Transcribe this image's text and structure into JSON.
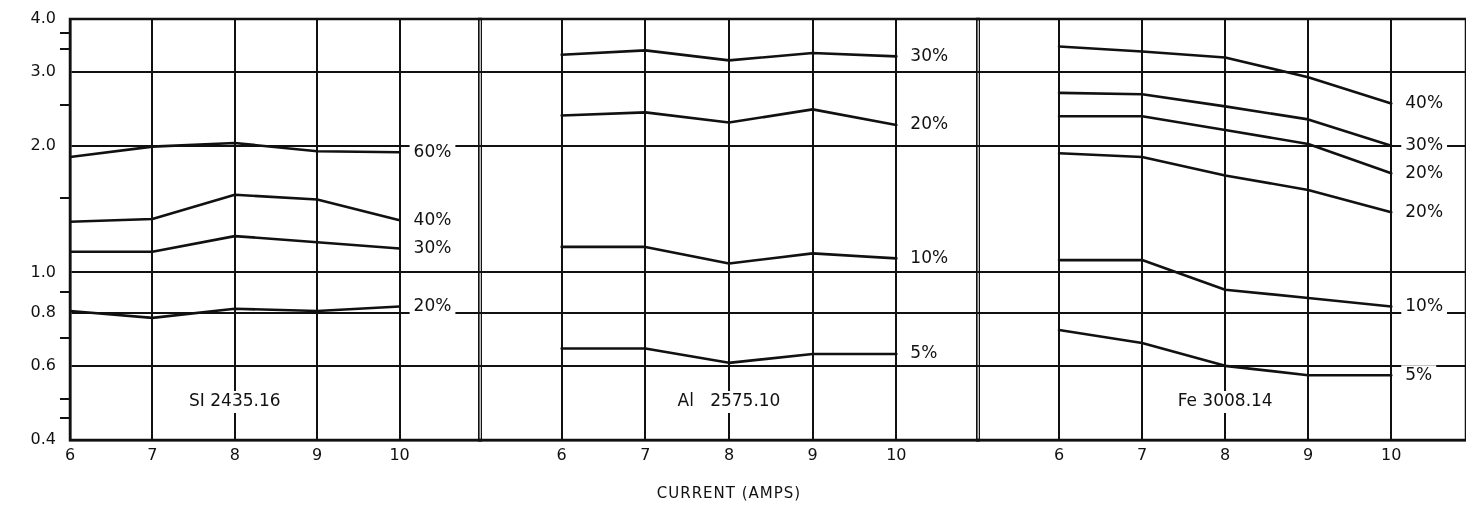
{
  "chart_data": [
    {
      "type": "line",
      "x": [
        6,
        7,
        8,
        9,
        10
      ],
      "log": "y",
      "grid": true,
      "legend": false,
      "marker": "none",
      "line_style": "solid",
      "annotations": [
        "SI 2435.16"
      ],
      "xlim": [
        6,
        11
      ],
      "xticks": [
        6,
        7,
        8,
        9,
        10
      ],
      "ylim": [
        0.4,
        4.0
      ],
      "yticks": [
        {
          "value": 0.4,
          "label": "0.4"
        },
        {
          "value": 0.45,
          "label": null
        },
        {
          "value": 0.5,
          "label": null
        },
        {
          "value": 0.6,
          "label": "0.6"
        },
        {
          "value": 0.7,
          "label": null
        },
        {
          "value": 0.8,
          "label": "0.8"
        },
        {
          "value": 0.9,
          "label": null
        },
        {
          "value": 1.0,
          "label": "1.0"
        },
        {
          "value": 1.5,
          "label": null
        },
        {
          "value": 2.0,
          "label": "2.0"
        },
        {
          "value": 2.5,
          "label": null
        },
        {
          "value": 3.0,
          "label": "3.0"
        },
        {
          "value": 3.4,
          "label": null
        },
        {
          "value": 3.7,
          "label": null
        },
        {
          "value": 4.0,
          "label": "4.0"
        }
      ],
      "series": [
        {
          "name": "60%",
          "color": "#111111",
          "values": [
            1.88,
            1.99,
            2.03,
            1.94,
            1.93
          ]
        },
        {
          "name": "40%",
          "color": "#111111",
          "values": [
            1.32,
            1.34,
            1.53,
            1.49,
            1.33
          ]
        },
        {
          "name": "30%",
          "color": "#111111",
          "values": [
            1.12,
            1.12,
            1.22,
            1.18,
            1.14
          ]
        },
        {
          "name": "20%",
          "color": "#111111",
          "values": [
            0.81,
            0.78,
            0.82,
            0.81,
            0.83
          ]
        }
      ]
    },
    {
      "type": "line",
      "x": [
        6,
        7,
        8,
        9,
        10
      ],
      "log": "y",
      "grid": true,
      "legend": false,
      "marker": "none",
      "line_style": "solid",
      "tick_labels": "x",
      "xlabel": "CURRENT (AMPS)",
      "annotations": [
        "Al   2575.10"
      ],
      "xlim": [
        5,
        11
      ],
      "xticks": [
        6,
        7,
        8,
        9,
        10
      ],
      "ylim": [
        0.4,
        4.0
      ],
      "yticks": [
        0.4,
        0.6,
        0.8,
        1,
        2,
        3,
        4
      ],
      "series": [
        {
          "name": "30%",
          "color": "#111111",
          "values": [
            3.29,
            3.37,
            3.19,
            3.32,
            3.26
          ]
        },
        {
          "name": "20%",
          "color": "#111111",
          "values": [
            2.36,
            2.4,
            2.27,
            2.44,
            2.24
          ]
        },
        {
          "name": "10%",
          "color": "#111111",
          "values": [
            1.15,
            1.15,
            1.05,
            1.11,
            1.08
          ]
        },
        {
          "name": "5%",
          "color": "#111111",
          "values": [
            0.66,
            0.66,
            0.61,
            0.64,
            0.64
          ]
        }
      ]
    },
    {
      "type": "line",
      "x": [
        6,
        7,
        8,
        9,
        10
      ],
      "log": "y",
      "grid": true,
      "legend": false,
      "marker": "none",
      "line_style": "solid",
      "tick_labels": "x",
      "annotations": [
        "Fe 3008.14"
      ],
      "xlim": [
        5,
        10.9
      ],
      "xticks": [
        6,
        7,
        8,
        9,
        10
      ],
      "ylim": [
        0.4,
        4.0
      ],
      "yticks": [
        0.4,
        0.6,
        0.8,
        1,
        2,
        3,
        4
      ],
      "series": [
        {
          "name": "40%",
          "color": "#111111",
          "values": [
            3.44,
            3.35,
            3.24,
            2.91,
            2.52
          ]
        },
        {
          "name": "30%",
          "color": "#111111",
          "values": [
            2.67,
            2.65,
            2.48,
            2.31,
            2.0
          ]
        },
        {
          "name": "20%",
          "color": "#111111",
          "values": [
            2.35,
            2.35,
            2.18,
            2.02,
            1.72
          ]
        },
        {
          "name": "20%",
          "color": "#111111",
          "values": [
            1.92,
            1.88,
            1.7,
            1.57,
            1.39
          ]
        },
        {
          "name": "10%",
          "color": "#111111",
          "values": [
            1.07,
            1.07,
            0.91,
            0.87,
            0.83
          ]
        },
        {
          "name": "5%",
          "color": "#111111",
          "values": [
            0.73,
            0.68,
            0.6,
            0.57,
            0.57
          ]
        }
      ]
    }
  ]
}
